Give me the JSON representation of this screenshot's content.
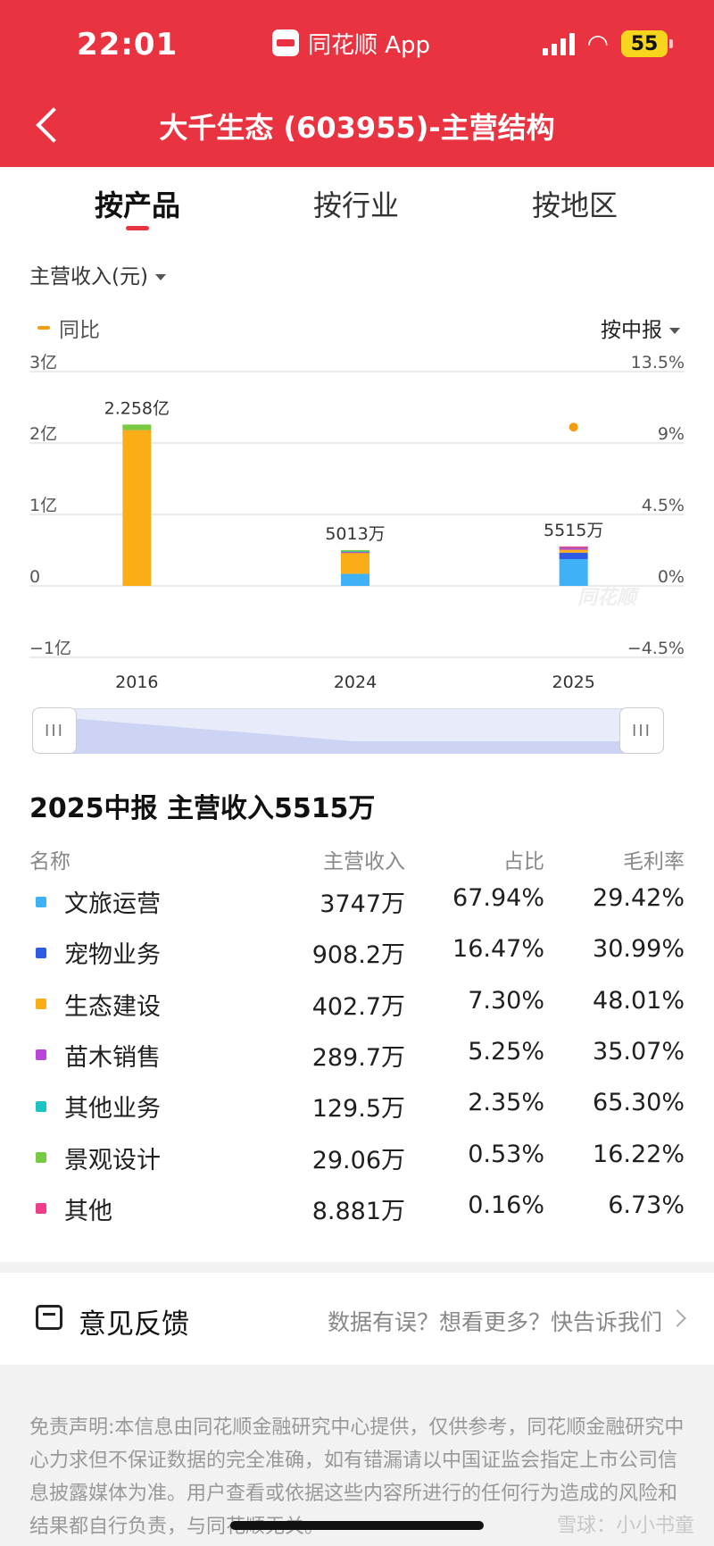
{
  "status_bar": {
    "time": "22:01",
    "app_name": "同花顺 App",
    "battery": "55"
  },
  "header": {
    "title": "大千生态 (603955)-主营结构"
  },
  "tabs": [
    {
      "label": "按产品",
      "active": true
    },
    {
      "label": "按行业",
      "active": false
    },
    {
      "label": "按地区",
      "active": false
    }
  ],
  "metric_select": "主营收入(元)",
  "legend_label": "同比",
  "period_select": "按中报",
  "chart_data": {
    "type": "bar",
    "stacked": true,
    "categories": [
      "2016",
      "2024",
      "2025"
    ],
    "y_left": {
      "ticks": [
        "3亿",
        "2亿",
        "1亿",
        "0",
        "−1亿"
      ],
      "range": [
        -100000000,
        300000000
      ]
    },
    "y_right": {
      "ticks": [
        "13.5%",
        "9%",
        "4.5%",
        "0%",
        "−4.5%"
      ],
      "range": [
        -4.5,
        13.5
      ]
    },
    "totals": [
      225800000,
      50130000,
      55150000
    ],
    "total_labels": [
      "2.258亿",
      "5013万",
      "5515万"
    ],
    "series": [
      {
        "name": "文旅运营",
        "color": "#3fb1f5",
        "values": [
          0,
          17000000,
          37470000
        ]
      },
      {
        "name": "宠物业务",
        "color": "#2d5be3",
        "values": [
          0,
          0,
          9082000
        ]
      },
      {
        "name": "生态建设",
        "color": "#fbad17",
        "values": [
          218000000,
          30000000,
          4027000
        ]
      },
      {
        "name": "苗木销售",
        "color": "#b844d8",
        "values": [
          0,
          900000,
          2897000
        ]
      },
      {
        "name": "其他业务",
        "color": "#1bc4c4",
        "values": [
          0,
          1230000,
          1295000
        ]
      },
      {
        "name": "景观设计",
        "color": "#7ac943",
        "values": [
          7800000,
          1000000,
          290600
        ]
      },
      {
        "name": "其他",
        "color": "#f23c8c",
        "values": [
          0,
          0,
          88810
        ]
      }
    ],
    "yoy": [
      null,
      null,
      10.0
    ],
    "watermark": "同花顺"
  },
  "table": {
    "summary": "2025中报  主营收入5515万",
    "headers": {
      "name": "名称",
      "revenue": "主营收入",
      "share": "占比",
      "margin": "毛利率"
    },
    "rows": [
      {
        "name": "文旅运营",
        "color": "#3fb1f5",
        "revenue": "3747万",
        "share": "67.94%",
        "margin": "29.42%"
      },
      {
        "name": "宠物业务",
        "color": "#2d5be3",
        "revenue": "908.2万",
        "share": "16.47%",
        "margin": "30.99%"
      },
      {
        "name": "生态建设",
        "color": "#fbad17",
        "revenue": "402.7万",
        "share": "7.30%",
        "margin": "48.01%"
      },
      {
        "name": "苗木销售",
        "color": "#b844d8",
        "revenue": "289.7万",
        "share": "5.25%",
        "margin": "35.07%"
      },
      {
        "name": "其他业务",
        "color": "#1bc4c4",
        "revenue": "129.5万",
        "share": "2.35%",
        "margin": "65.30%"
      },
      {
        "name": "景观设计",
        "color": "#7ac943",
        "revenue": "29.06万",
        "share": "0.53%",
        "margin": "16.22%"
      },
      {
        "name": "其他",
        "color": "#f23c8c",
        "revenue": "8.881万",
        "share": "0.16%",
        "margin": "6.73%"
      }
    ]
  },
  "feedback": {
    "title": "意见反馈",
    "subtitle": "数据有误？想看更多？快告诉我们"
  },
  "disclaimer": "免责声明:本信息由同花顺金融研究中心提供，仅供参考，同花顺金融研究中心力求但不保证数据的完全准确，如有错漏请以中国证监会指定上市公司信息披露媒体为准。用户查看或依据这些内容所进行的任何行为造成的风险和结果都自行负责，与同花顺无关。",
  "watermark_bottom": "雪球：小小书童"
}
